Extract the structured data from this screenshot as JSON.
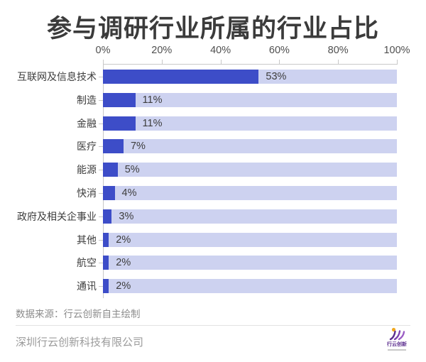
{
  "title": "参与调研行业所属的行业占比",
  "chart_data": {
    "type": "bar",
    "orientation": "horizontal",
    "title": "参与调研行业所属的行业占比",
    "categories": [
      "互联网及信息技术",
      "制造",
      "金融",
      "医疗",
      "能源",
      "快消",
      "政府及相关企事业",
      "其他",
      "航空",
      "通讯"
    ],
    "values": [
      53,
      11,
      11,
      7,
      5,
      4,
      3,
      2,
      2,
      2
    ],
    "value_labels": [
      "53%",
      "11%",
      "11%",
      "7%",
      "5%",
      "4%",
      "3%",
      "2%",
      "2%",
      "2%"
    ],
    "x_axis": {
      "position": "top",
      "min": 0,
      "max": 100,
      "ticks": [
        "0%",
        "20%",
        "40%",
        "60%",
        "80%",
        "100%"
      ]
    },
    "grid": false,
    "legend": "none",
    "colors": {
      "bar_fill": "#3d4dc8",
      "bar_track": "#cdd2f0",
      "axis_line": "#c8c8c8",
      "label_text": "#3d3d3d",
      "axis_text": "#4f4f4f"
    }
  },
  "footer": {
    "source": "数据来源：行云创新自主绘制",
    "company": "深圳行云创新科技有限公司",
    "logo_text": "行云创新"
  }
}
